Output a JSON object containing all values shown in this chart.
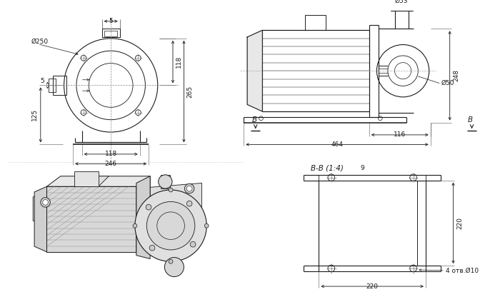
{
  "bg_color": "#ffffff",
  "line_color": "#1a1a1a",
  "dim_color": "#1a1a1a",
  "font_size": 6.5,
  "annotations": {
    "top_dim_5": "5",
    "phi250": "Ø250",
    "dim_118_v": "118",
    "dim_265": "265",
    "dim_5_h": "5",
    "dim_125": "125",
    "dim_118_h": "118",
    "dim_246": "246",
    "phi53": "Ø53",
    "phi50": "Ø50",
    "dim_248": "248",
    "dim_116": "116",
    "dim_464": "464",
    "section_label": "B-B (1:4)",
    "section_num": "9",
    "dim_220_v": "220",
    "dim_220_h": "220",
    "holes": "4 отв.Ø10",
    "view_arrow_B": "B"
  }
}
